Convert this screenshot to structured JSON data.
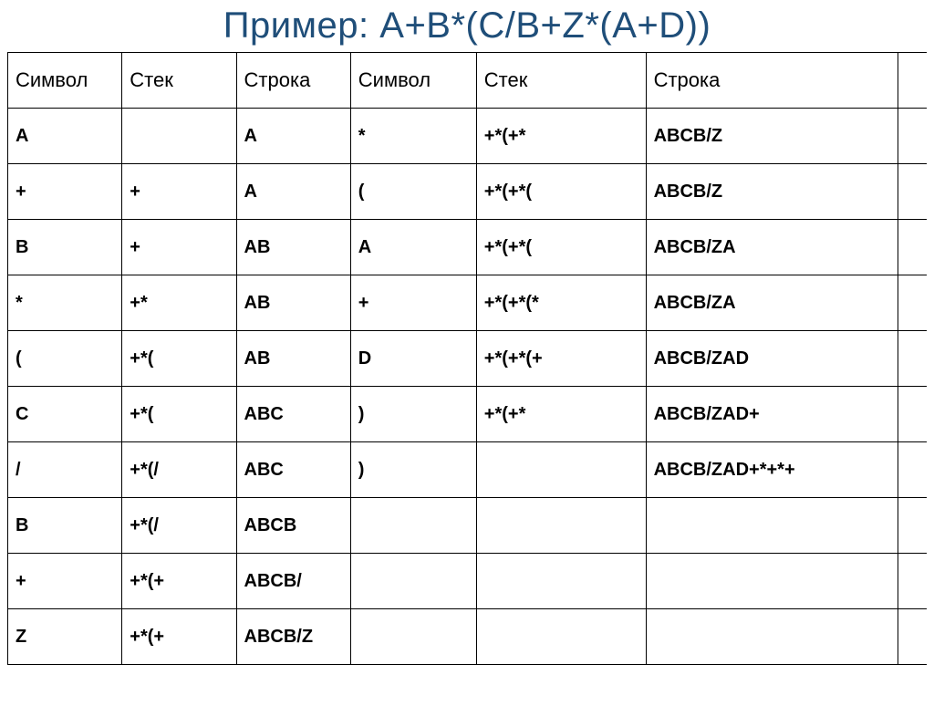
{
  "title": "Пример: A+B*(C/B+Z*(A+D))",
  "headers": [
    "Символ",
    "Стек",
    "Строка",
    "Символ",
    "Стек",
    "Строка",
    ""
  ],
  "rows": [
    [
      "A",
      "",
      "A",
      "*",
      "+*(+*",
      "ABCB/Z",
      ""
    ],
    [
      "+",
      "+",
      "A",
      "(",
      "+*(+*(",
      "ABCB/Z",
      ""
    ],
    [
      "B",
      "+",
      "AB",
      "A",
      "+*(+*(",
      "ABCB/ZA",
      ""
    ],
    [
      "*",
      "+*",
      "AB",
      "+",
      "+*(+*(*",
      "ABCB/ZA",
      ""
    ],
    [
      "(",
      "+*(",
      "AB",
      "D",
      "+*(+*(+",
      "ABCB/ZAD",
      ""
    ],
    [
      "C",
      "+*(",
      "ABC",
      ")",
      "+*(+*",
      "ABCB/ZAD+",
      ""
    ],
    [
      "/",
      "+*(/",
      "ABC",
      ")",
      "",
      "ABCB/ZAD+*+*+",
      ""
    ],
    [
      "B",
      "+*(/",
      "ABCB",
      "",
      "",
      "",
      ""
    ],
    [
      "+",
      "+*(+",
      "ABCB/",
      "",
      "",
      "",
      ""
    ],
    [
      "Z",
      "+*(+",
      "ABCB/Z",
      "",
      "",
      "",
      ""
    ]
  ],
  "colors": {
    "title": "#1f4e79",
    "border": "#000000",
    "background": "#ffffff",
    "text": "#000000"
  }
}
